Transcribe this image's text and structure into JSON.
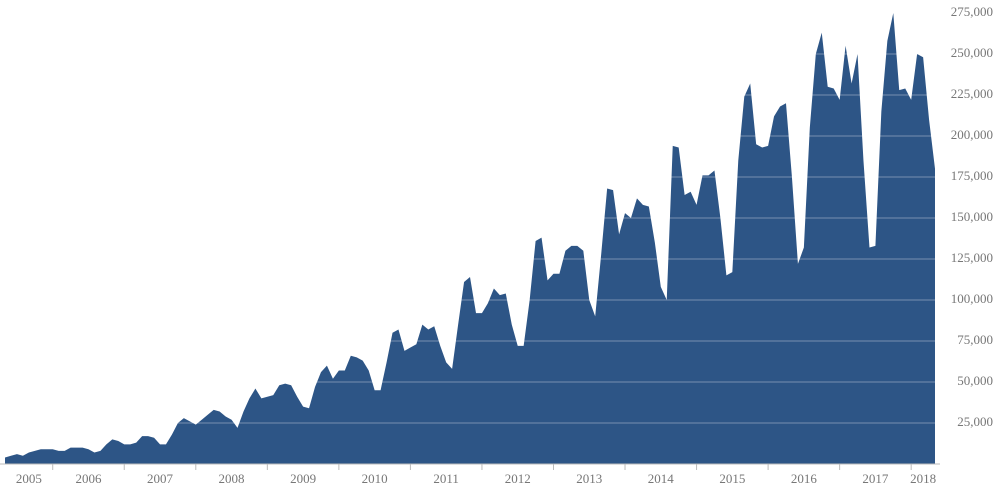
{
  "chart_data": {
    "type": "area",
    "color": "#2d5586",
    "grid": true,
    "xlim": [
      2005.333,
      2018.333
    ],
    "xticks": [
      2005,
      2006,
      2007,
      2008,
      2009,
      2010,
      2011,
      2012,
      2013,
      2014,
      2015,
      2016,
      2017,
      2018
    ],
    "ylim": [
      0,
      275000
    ],
    "yticks": [
      {
        "value": 25000,
        "label": "25,000"
      },
      {
        "value": 50000,
        "label": "50,000"
      },
      {
        "value": 75000,
        "label": "75,000"
      },
      {
        "value": 100000,
        "label": "100,000"
      },
      {
        "value": 125000,
        "label": "125,000"
      },
      {
        "value": 150000,
        "label": "150,000"
      },
      {
        "value": 175000,
        "label": "175,000"
      },
      {
        "value": 200000,
        "label": "200,000"
      },
      {
        "value": 225000,
        "label": "225,000"
      },
      {
        "value": 250000,
        "label": "250,000"
      },
      {
        "value": 275000,
        "label": "275,000"
      }
    ],
    "x": [
      2005.333,
      2005.417,
      2005.5,
      2005.583,
      2005.667,
      2005.75,
      2005.833,
      2005.917,
      2006,
      2006.083,
      2006.167,
      2006.25,
      2006.333,
      2006.417,
      2006.5,
      2006.583,
      2006.667,
      2006.75,
      2006.833,
      2006.917,
      2007,
      2007.083,
      2007.167,
      2007.25,
      2007.333,
      2007.417,
      2007.5,
      2007.583,
      2007.667,
      2007.75,
      2007.833,
      2007.917,
      2008,
      2008.083,
      2008.167,
      2008.25,
      2008.333,
      2008.417,
      2008.5,
      2008.583,
      2008.667,
      2008.75,
      2008.833,
      2008.917,
      2009,
      2009.083,
      2009.167,
      2009.25,
      2009.333,
      2009.417,
      2009.5,
      2009.583,
      2009.667,
      2009.75,
      2009.833,
      2009.917,
      2010,
      2010.083,
      2010.167,
      2010.25,
      2010.333,
      2010.417,
      2010.5,
      2010.583,
      2010.667,
      2010.75,
      2010.833,
      2010.917,
      2011,
      2011.083,
      2011.167,
      2011.25,
      2011.333,
      2011.417,
      2011.5,
      2011.583,
      2011.667,
      2011.75,
      2011.833,
      2011.917,
      2012,
      2012.083,
      2012.167,
      2012.25,
      2012.333,
      2012.417,
      2012.5,
      2012.583,
      2012.667,
      2012.75,
      2012.833,
      2012.917,
      2013,
      2013.083,
      2013.167,
      2013.25,
      2013.333,
      2013.417,
      2013.5,
      2013.583,
      2013.667,
      2013.75,
      2013.833,
      2013.917,
      2014,
      2014.083,
      2014.167,
      2014.25,
      2014.333,
      2014.417,
      2014.5,
      2014.583,
      2014.667,
      2014.75,
      2014.833,
      2014.917,
      2015,
      2015.083,
      2015.167,
      2015.25,
      2015.333,
      2015.417,
      2015.5,
      2015.583,
      2015.667,
      2015.75,
      2015.833,
      2015.917,
      2016,
      2016.083,
      2016.167,
      2016.25,
      2016.333,
      2016.417,
      2016.5,
      2016.583,
      2016.667,
      2016.75,
      2016.833,
      2016.917,
      2017,
      2017.083,
      2017.167,
      2017.25,
      2017.333,
      2017.417,
      2017.5,
      2017.583,
      2017.667,
      2017.75,
      2017.833,
      2017.917,
      2018,
      2018.083,
      2018.167,
      2018.25,
      2018.333
    ],
    "values": [
      4000,
      5000,
      6000,
      5000,
      7000,
      8000,
      9000,
      9000,
      9000,
      8000,
      8000,
      10000,
      10000,
      10000,
      9000,
      7000,
      8000,
      12000,
      15000,
      14000,
      12000,
      12000,
      13000,
      17000,
      17000,
      16000,
      12000,
      12000,
      18000,
      25000,
      28000,
      26000,
      24000,
      27000,
      30000,
      33000,
      32000,
      29000,
      27000,
      22000,
      32000,
      40000,
      46000,
      40000,
      41000,
      42000,
      48000,
      49000,
      48000,
      41000,
      35000,
      34000,
      47000,
      56000,
      60000,
      52000,
      57000,
      57000,
      66000,
      65000,
      63000,
      57000,
      45000,
      45000,
      62000,
      80000,
      82000,
      69000,
      71000,
      73000,
      85000,
      82000,
      84000,
      72000,
      62000,
      58000,
      85000,
      111000,
      114000,
      92000,
      92000,
      98000,
      107000,
      103000,
      104000,
      85000,
      72000,
      72000,
      100000,
      136000,
      138000,
      112000,
      116000,
      116000,
      130000,
      133000,
      133000,
      130000,
      100000,
      90000,
      128000,
      168000,
      167000,
      140000,
      153000,
      150000,
      162000,
      158000,
      157000,
      135000,
      108000,
      100000,
      194000,
      193000,
      164000,
      166000,
      158000,
      176000,
      176000,
      179000,
      150000,
      115000,
      117000,
      185000,
      224000,
      232000,
      195000,
      193000,
      194000,
      212000,
      218000,
      220000,
      175000,
      122000,
      132000,
      205000,
      250000,
      263000,
      230000,
      229000,
      222000,
      255000,
      232000,
      250000,
      185000,
      132000,
      133000,
      215000,
      258000,
      275000,
      228000,
      229000,
      222000,
      250000,
      248000,
      210000,
      180000
    ]
  }
}
